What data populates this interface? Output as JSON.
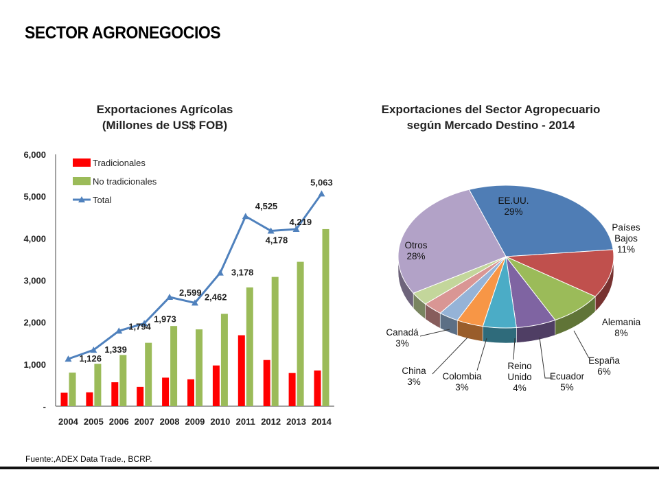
{
  "page": {
    "title": "SECTOR AGRONEGOCIOS",
    "source": "Fuente:,ADEX Data Trade., BCRP."
  },
  "colors": {
    "tradicionales": "#ff0000",
    "no_tradicionales": "#9bbb59",
    "total": "#4f81bd"
  },
  "chart_data": [
    {
      "type": "bar",
      "title": "Exportaciones Agrícolas",
      "subtitle": "(Millones de US$ FOB)",
      "categories": [
        "2004",
        "2005",
        "2006",
        "2007",
        "2008",
        "2009",
        "2010",
        "2011",
        "2012",
        "2013",
        "2014"
      ],
      "y_ticks": [
        "-",
        "1,000",
        "2,000",
        "3,000",
        "4,000",
        "5,000",
        "6,000"
      ],
      "ylim": [
        0,
        6000
      ],
      "legend_position": "top-left",
      "series": [
        {
          "name": "Tradicionales",
          "type": "bar",
          "color": "#ff0000",
          "values": [
            320,
            330,
            570,
            460,
            680,
            640,
            970,
            1690,
            1100,
            790,
            850
          ]
        },
        {
          "name": "No tradicionales",
          "type": "bar",
          "color": "#9bbb59",
          "values": [
            800,
            1010,
            1220,
            1510,
            1910,
            1830,
            2200,
            2830,
            3080,
            3440,
            4219
          ]
        },
        {
          "name": "Total",
          "type": "line",
          "color": "#4f81bd",
          "values": [
            1126,
            1339,
            1794,
            1973,
            2599,
            2462,
            3178,
            4525,
            4178,
            4219,
            5063
          ]
        }
      ],
      "data_labels": [
        "1,126",
        "1,339",
        "1,794",
        "1,973",
        "2,599",
        "2,462",
        "3,178",
        "4,525",
        "4,178",
        "4,219",
        "5,063"
      ]
    },
    {
      "type": "pie",
      "title": "Exportaciones del Sector Agropecuario",
      "subtitle": "según Mercado Destino - 2014",
      "slices": [
        {
          "label_lines": [
            "EE.UU.",
            "29%"
          ],
          "value": 29,
          "color": "#4f7db5"
        },
        {
          "label_lines": [
            "Países",
            "Bajos",
            "11%"
          ],
          "value": 11,
          "color": "#c0504d"
        },
        {
          "label_lines": [
            "Alemania",
            "8%"
          ],
          "value": 8,
          "color": "#9bbb59"
        },
        {
          "label_lines": [
            "España",
            "6%"
          ],
          "value": 6,
          "color": "#7f64a2"
        },
        {
          "label_lines": [
            "Ecuador",
            "5%"
          ],
          "value": 5,
          "color": "#4bacc6"
        },
        {
          "label_lines": [
            "Reino",
            "Unido",
            "4%"
          ],
          "value": 4,
          "color": "#f79646"
        },
        {
          "label_lines": [
            "Colombia",
            "3%"
          ],
          "value": 3,
          "color": "#95b3d7"
        },
        {
          "label_lines": [
            "China",
            "3%"
          ],
          "value": 3,
          "color": "#d99694"
        },
        {
          "label_lines": [
            "Canadá",
            "3%"
          ],
          "value": 3,
          "color": "#c3d69b"
        },
        {
          "label_lines": [
            "Otros",
            "28%"
          ],
          "value": 28,
          "color": "#b2a2c7"
        }
      ]
    }
  ]
}
